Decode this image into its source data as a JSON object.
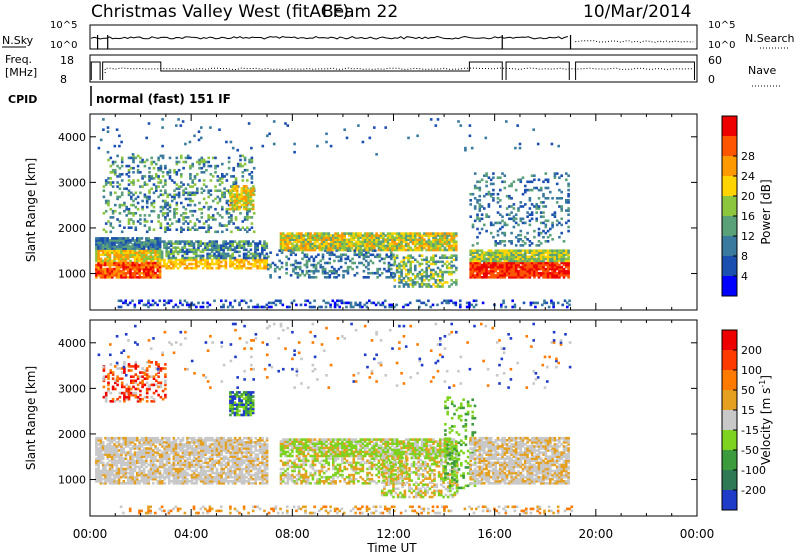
{
  "header": {
    "radar": "Christmas Valley West (fitACF)",
    "beam": "Beam 22",
    "date": "10/Mar/2014"
  },
  "params": {
    "nsky_label": "N.Sky",
    "nsearch_label": "N.Search",
    "freq_label": "Freq.",
    "freq_unit": "[MHz]",
    "nave_label": "Nave",
    "cpid_label": "CPID",
    "cpid_value": "normal (fast) 151 IF",
    "noise_ticks": [
      "10^5",
      "10^0"
    ],
    "freq_ticks": [
      "18",
      "8"
    ],
    "nave_ticks": [
      "60",
      "0"
    ]
  },
  "chart_data": [
    {
      "type": "heatmap",
      "name": "power",
      "ylabel": "Slant Range [km]",
      "yticks": [
        1000,
        2000,
        3000,
        4000
      ],
      "ylim": [
        200,
        4500
      ],
      "xlim": [
        0,
        24
      ],
      "colorbar_label": "Power [dB]",
      "colorbar_ticks": [
        4,
        8,
        12,
        16,
        20,
        24,
        28
      ],
      "colors": [
        "#0000ff",
        "#1b4fb0",
        "#3a7a9e",
        "#5aa078",
        "#8cc63f",
        "#ffd400",
        "#ff9900",
        "#ff5500",
        "#ee0000"
      ]
    },
    {
      "type": "heatmap",
      "name": "velocity",
      "ylabel": "Slant Range [km]",
      "yticks": [
        1000,
        2000,
        3000,
        4000
      ],
      "ylim": [
        200,
        4500
      ],
      "xlim": [
        0,
        24
      ],
      "xlabel": "Time UT",
      "xticks": [
        "00:00",
        "04:00",
        "08:00",
        "12:00",
        "16:00",
        "20:00",
        "00:00"
      ],
      "colorbar_label": "Velocity [m s",
      "colorbar_label_sup": "-1",
      "colorbar_label_end": "]",
      "colorbar_ticks": [
        200,
        100,
        50,
        15,
        -15,
        -50,
        -100,
        -200
      ],
      "colors": [
        "#1e3cc8",
        "#2f7a55",
        "#3c9b3c",
        "#7ed321",
        "#c8c8c8",
        "#e6a020",
        "#ff7a00",
        "#ff3a00",
        "#ee0000"
      ]
    }
  ]
}
